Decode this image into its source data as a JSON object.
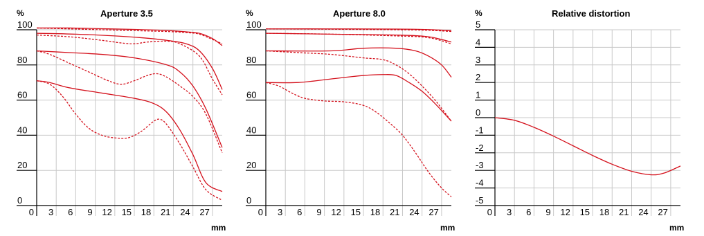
{
  "chart_data": [
    {
      "type": "line",
      "title": "Aperture 3.5",
      "ylabel": "%",
      "xlabel": "mm",
      "xlim": [
        0,
        28.5
      ],
      "ylim": [
        0,
        100
      ],
      "x_ticks": [
        0,
        3,
        6,
        9,
        12,
        15,
        18,
        21,
        24,
        27
      ],
      "y_ticks": [
        0,
        20,
        40,
        60,
        80,
        100
      ],
      "grid": true,
      "series": [
        {
          "style": "solid",
          "x": [
            0,
            5,
            10,
            15,
            20,
            23,
            25,
            27,
            28.5
          ],
          "y": [
            101,
            101,
            100.6,
            100.2,
            99.6,
            98.8,
            98,
            95,
            91
          ]
        },
        {
          "style": "dashed",
          "x": [
            0,
            5,
            10,
            15,
            20,
            23,
            25,
            27,
            28.5
          ],
          "y": [
            101,
            100.5,
            100,
            99.5,
            99,
            98.4,
            97.5,
            94.5,
            92
          ]
        },
        {
          "style": "solid",
          "x": [
            0,
            6,
            12,
            16,
            20,
            23,
            25,
            27,
            28.5
          ],
          "y": [
            98,
            97.5,
            96.5,
            95.5,
            94,
            92,
            88,
            78,
            66
          ]
        },
        {
          "style": "dashed",
          "x": [
            0,
            5,
            10,
            13,
            15,
            17,
            20,
            22,
            25,
            27,
            28.5
          ],
          "y": [
            97,
            96,
            94,
            92.5,
            92,
            93,
            93.5,
            92,
            85,
            72,
            63
          ]
        },
        {
          "style": "solid",
          "x": [
            0,
            5,
            10,
            15,
            20,
            22,
            24,
            26,
            28.5
          ],
          "y": [
            88,
            87,
            86,
            84,
            80,
            76,
            68,
            55,
            33
          ]
        },
        {
          "style": "dashed",
          "x": [
            0,
            2,
            5,
            8,
            11,
            13,
            15,
            17,
            18.5,
            20,
            22,
            24,
            26,
            28.5
          ],
          "y": [
            88,
            86,
            81,
            76,
            71,
            69,
            71,
            74,
            75,
            73,
            68,
            62,
            52,
            30
          ]
        },
        {
          "style": "solid",
          "x": [
            0,
            2,
            5,
            10,
            15,
            18,
            20,
            22,
            24,
            26,
            28.5
          ],
          "y": [
            71,
            70,
            67,
            64,
            61,
            58,
            53,
            43,
            29,
            13,
            8
          ]
        },
        {
          "style": "dashed",
          "x": [
            0,
            2,
            4,
            6,
            8,
            10,
            12,
            14,
            16,
            18,
            19,
            20,
            22,
            24,
            26,
            28.5
          ],
          "y": [
            71,
            69,
            62,
            52,
            44,
            40,
            38.5,
            38.5,
            42,
            48,
            49,
            46,
            35,
            22,
            9,
            3
          ]
        }
      ]
    },
    {
      "type": "line",
      "title": "Aperture 8.0",
      "ylabel": "%",
      "xlabel": "mm",
      "xlim": [
        0,
        28.5
      ],
      "ylim": [
        0,
        100
      ],
      "x_ticks": [
        0,
        3,
        6,
        9,
        12,
        15,
        18,
        21,
        24,
        27
      ],
      "y_ticks": [
        0,
        20,
        40,
        60,
        80,
        100
      ],
      "grid": true,
      "series": [
        {
          "style": "solid",
          "x": [
            0,
            10,
            20,
            25,
            28.5
          ],
          "y": [
            100.5,
            100.5,
            100.4,
            100.1,
            99.5
          ]
        },
        {
          "style": "dashed",
          "x": [
            0,
            10,
            20,
            25,
            28.5
          ],
          "y": [
            100.5,
            100.3,
            100,
            99.7,
            99
          ]
        },
        {
          "style": "solid",
          "x": [
            0,
            10,
            20,
            25,
            28.5
          ],
          "y": [
            98,
            97.5,
            97,
            96,
            93
          ]
        },
        {
          "style": "dashed",
          "x": [
            0,
            10,
            20,
            25,
            28.5
          ],
          "y": [
            98,
            97.5,
            96.5,
            95.5,
            92
          ]
        },
        {
          "style": "solid",
          "x": [
            0,
            10,
            15,
            20,
            23,
            25,
            27,
            28.5
          ],
          "y": [
            88,
            88,
            89.5,
            89.5,
            88,
            85,
            80,
            73
          ]
        },
        {
          "style": "dashed",
          "x": [
            0,
            5,
            10,
            15,
            18,
            20,
            22,
            24,
            26,
            28.5
          ],
          "y": [
            88,
            87,
            86,
            84,
            83,
            80,
            75,
            68,
            60,
            48
          ]
        },
        {
          "style": "solid",
          "x": [
            0,
            5,
            10,
            15,
            18,
            20,
            22,
            24,
            26,
            28.5
          ],
          "y": [
            70,
            70,
            72,
            74,
            74.5,
            74,
            70,
            65,
            58,
            48
          ]
        },
        {
          "style": "dashed",
          "x": [
            0,
            2,
            4,
            6,
            9,
            12,
            15,
            17,
            19,
            21,
            23,
            25,
            27,
            28.5
          ],
          "y": [
            70,
            68,
            64,
            61,
            59.5,
            59,
            57,
            53,
            47,
            40,
            30,
            19,
            10,
            5
          ]
        }
      ]
    },
    {
      "type": "line",
      "title": "Relative distortion",
      "ylabel": "%",
      "xlabel": "mm",
      "xlim": [
        0,
        28.5
      ],
      "ylim": [
        -5,
        5
      ],
      "x_ticks": [
        0,
        3,
        6,
        9,
        12,
        15,
        18,
        21,
        24,
        27
      ],
      "y_ticks": [
        -5,
        -4,
        -3,
        -2,
        -1,
        0,
        1,
        2,
        3,
        4,
        5
      ],
      "grid": true,
      "series": [
        {
          "style": "solid",
          "x": [
            0,
            3,
            6,
            9,
            12,
            15,
            18,
            21,
            24,
            26,
            28.5
          ],
          "y": [
            0,
            -0.15,
            -0.55,
            -1.05,
            -1.6,
            -2.15,
            -2.65,
            -3.05,
            -3.25,
            -3.15,
            -2.75
          ]
        }
      ]
    }
  ]
}
